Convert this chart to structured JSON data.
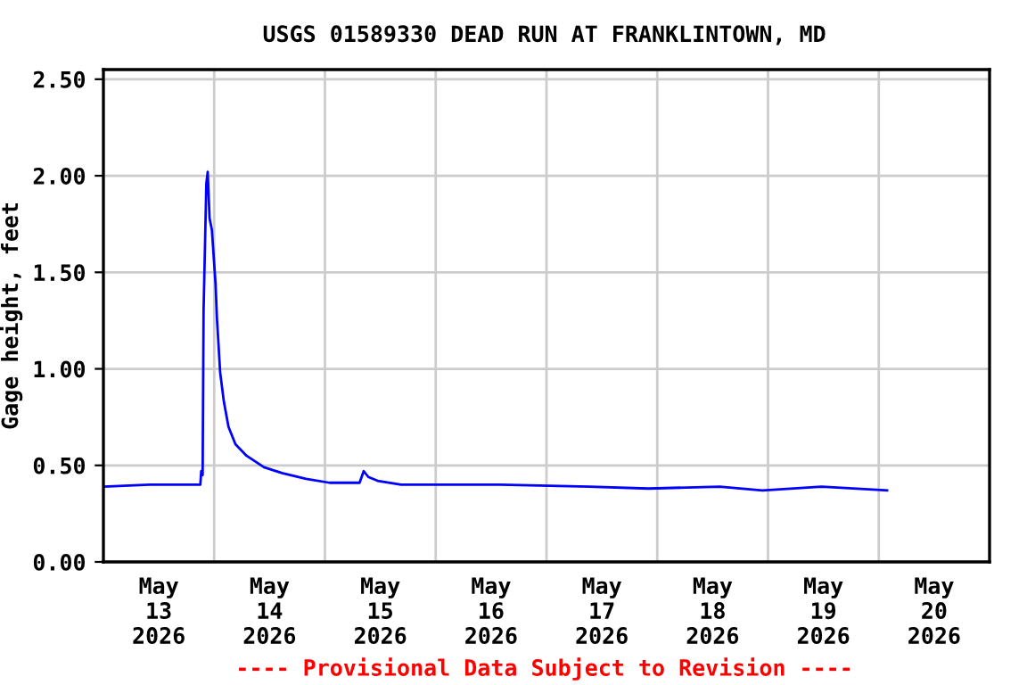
{
  "chart_data": {
    "type": "line",
    "title": "USGS 01589330 DEAD RUN AT FRANKLINTOWN, MD",
    "ylabel": "Gage height, feet",
    "annotations": [
      "---- Provisional Data Subject to Revision ----"
    ],
    "xlim": [
      "2026-05-13T00:00",
      "2026-05-21T00:00"
    ],
    "xticks": [
      {
        "value": "2026-05-13T12:00",
        "label": "May\n13\n2026"
      },
      {
        "value": "2026-05-14T12:00",
        "label": "May\n14\n2026"
      },
      {
        "value": "2026-05-15T12:00",
        "label": "May\n15\n2026"
      },
      {
        "value": "2026-05-16T12:00",
        "label": "May\n16\n2026"
      },
      {
        "value": "2026-05-17T12:00",
        "label": "May\n17\n2026"
      },
      {
        "value": "2026-05-18T12:00",
        "label": "May\n18\n2026"
      },
      {
        "value": "2026-05-19T12:00",
        "label": "May\n19\n2026"
      },
      {
        "value": "2026-05-20T12:00",
        "label": "May\n20\n2026"
      },
      {
        "value": "2026-05-14T00:00",
        "label": null
      },
      {
        "value": "2026-05-15T00:00",
        "label": null
      },
      {
        "value": "2026-05-16T00:00",
        "label": null
      },
      {
        "value": "2026-05-17T00:00",
        "label": null
      },
      {
        "value": "2026-05-18T00:00",
        "label": null
      },
      {
        "value": "2026-05-19T00:00",
        "label": null
      },
      {
        "value": "2026-05-20T00:00",
        "label": null
      }
    ],
    "ylim": [
      0,
      2.55
    ],
    "yticks": [
      {
        "value": 0,
        "label": "0.00"
      },
      {
        "value": 0.5,
        "label": "0.50"
      },
      {
        "value": 1,
        "label": "1.00"
      },
      {
        "value": 1.5,
        "label": "1.50"
      },
      {
        "value": 2,
        "label": "2.00"
      },
      {
        "value": 2.5,
        "label": "2.50"
      }
    ],
    "grid": true,
    "series": [
      {
        "color": "#0000ff",
        "x": [
          "2026-05-13T00:00",
          "2026-05-13T10:00",
          "2026-05-13T21:00",
          "2026-05-13T21:12",
          "2026-05-13T21:30",
          "2026-05-13T21:42",
          "2026-05-13T22:18",
          "2026-05-13T22:36",
          "2026-05-13T23:00",
          "2026-05-13T23:30",
          "2026-05-14T00:18",
          "2026-05-14T00:36",
          "2026-05-14T01:18",
          "2026-05-14T02:06",
          "2026-05-14T03:06",
          "2026-05-14T04:36",
          "2026-05-14T07:00",
          "2026-05-14T10:48",
          "2026-05-14T14:42",
          "2026-05-14T19:54",
          "2026-05-15T01:00",
          "2026-05-15T07:30",
          "2026-05-15T08:24",
          "2026-05-15T09:24",
          "2026-05-15T11:24",
          "2026-05-15T16:30",
          "2026-05-15T21:42",
          "2026-05-16T13:54",
          "2026-05-17T09:18",
          "2026-05-17T22:06",
          "2026-05-18T13:30",
          "2026-05-18T22:48",
          "2026-05-19T11:36",
          "2026-05-20T01:48"
        ],
        "values": [
          0.39,
          0.4,
          0.4,
          0.47,
          0.45,
          1.3,
          1.96,
          2.02,
          1.78,
          1.72,
          1.44,
          1.26,
          0.98,
          0.83,
          0.7,
          0.61,
          0.55,
          0.49,
          0.46,
          0.43,
          0.41,
          0.41,
          0.47,
          0.44,
          0.42,
          0.4,
          0.4,
          0.4,
          0.39,
          0.38,
          0.39,
          0.37,
          0.39,
          0.37
        ]
      }
    ]
  }
}
